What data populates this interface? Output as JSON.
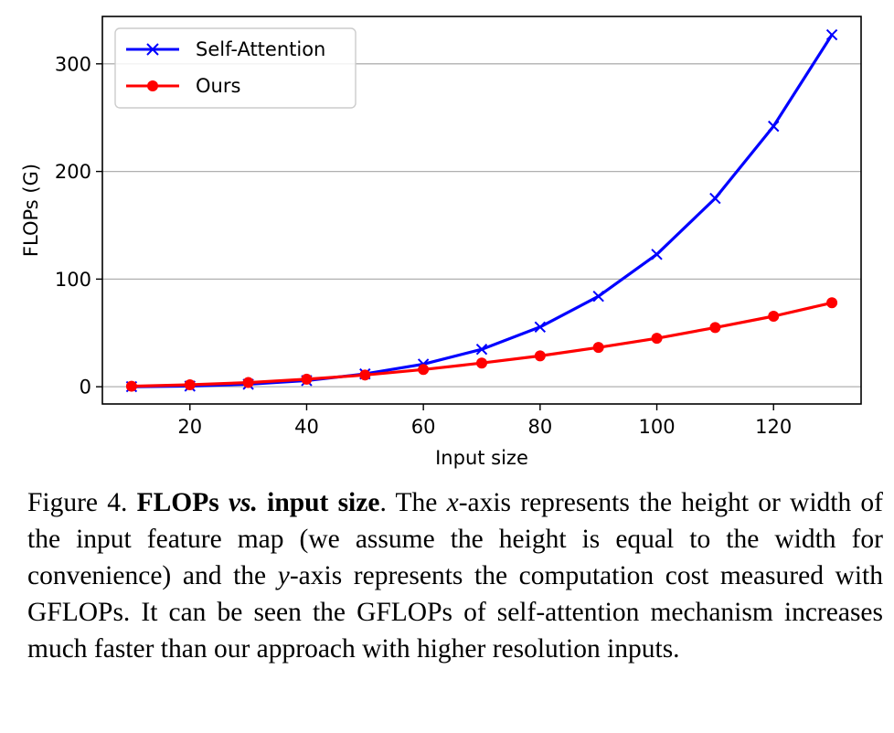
{
  "chart_data": {
    "type": "line",
    "title": "",
    "xlabel": "Input size",
    "ylabel": "FLOPs (G)",
    "xlim": [
      5,
      135
    ],
    "ylim": [
      -16,
      344
    ],
    "xticks": [
      20,
      40,
      60,
      80,
      100,
      120
    ],
    "yticks": [
      0,
      100,
      200,
      300
    ],
    "grid": "horizontal",
    "legend_position": "top-left",
    "x": [
      10,
      20,
      30,
      40,
      50,
      60,
      70,
      80,
      90,
      100,
      110,
      120,
      130
    ],
    "series": [
      {
        "name": "Self-Attention",
        "color": "#0000ff",
        "marker": "x",
        "values": [
          0.05,
          0.6,
          2.3,
          5.7,
          11.9,
          21.0,
          34.8,
          55.5,
          84.0,
          123.0,
          175.0,
          242.0,
          327.0
        ]
      },
      {
        "name": "Ours",
        "color": "#ff0000",
        "marker": "circle",
        "values": [
          0.5,
          1.8,
          3.9,
          7.0,
          10.9,
          16.0,
          22.0,
          28.7,
          36.5,
          45.0,
          55.0,
          65.5,
          78.0
        ]
      }
    ]
  },
  "caption": {
    "figure_label": "Figure 4.",
    "bold_a": "FLOPs",
    "bold_vs": "vs.",
    "bold_b": "input size",
    "t1": ". The ",
    "x_var": "x",
    "t2": "-axis represents the height or width of the input feature map (we assume the height is equal to the width for convenience) and the ",
    "y_var": "y",
    "t3": "-axis represents the computation cost measured with GFLOPs. It can be seen the GFLOPs of self-attention mechanism increases much faster than our approach with higher resolution inputs."
  }
}
